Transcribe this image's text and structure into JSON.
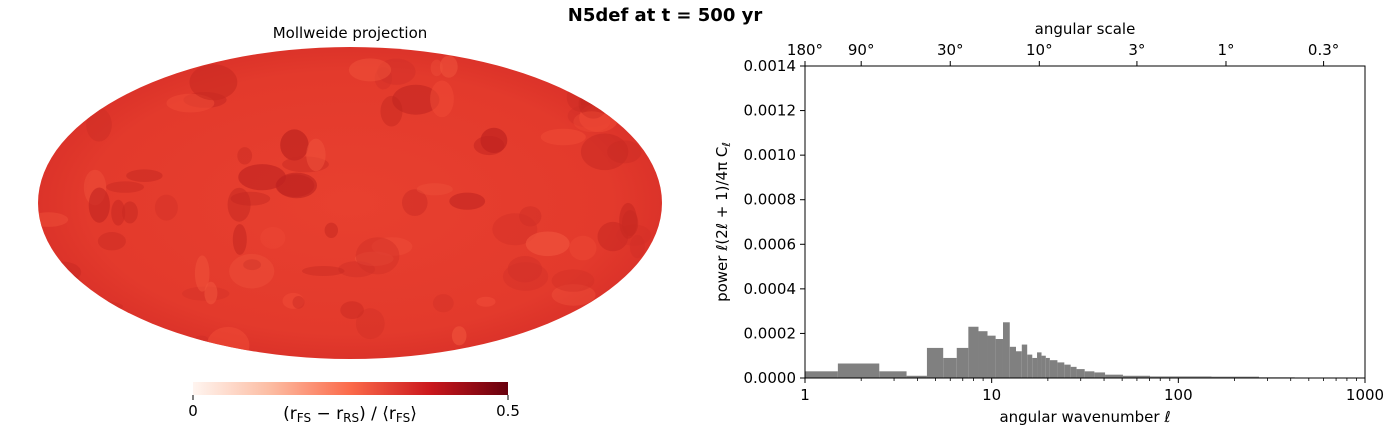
{
  "figure": {
    "title": "N5def at t =  500 yr"
  },
  "map": {
    "title": "Mollweide projection",
    "colorbar": {
      "label_parts": [
        "(r",
        "FS",
        " − r",
        "RS",
        ") / ⟨r",
        "FS",
        "⟩"
      ],
      "min_label": "0",
      "max_label": "0.5",
      "range": [
        0,
        0.5
      ],
      "colors": [
        "#fff5f0",
        "#fcbba1",
        "#fb6a4a",
        "#cb181d",
        "#67000d"
      ]
    },
    "base_color": "#e0302a"
  },
  "chart_data": {
    "type": "bar",
    "x_scale": "log",
    "xlim": [
      1,
      1000
    ],
    "ylim": [
      0,
      0.0014
    ],
    "xlabel": "angular wavenumber ℓ",
    "ylabel": "power ℓ(2ℓ + 1)/4π C",
    "ylabel_subscript": "ℓ",
    "x_ticks": [
      {
        "value": 1,
        "label": "1"
      },
      {
        "value": 10,
        "label": "10"
      },
      {
        "value": 100,
        "label": "100"
      },
      {
        "value": 1000,
        "label": "1000"
      }
    ],
    "y_ticks": [
      {
        "value": 0,
        "label": "0.0000"
      },
      {
        "value": 0.0002,
        "label": "0.0002"
      },
      {
        "value": 0.0004,
        "label": "0.0004"
      },
      {
        "value": 0.0006,
        "label": "0.0006"
      },
      {
        "value": 0.0008,
        "label": "0.0008"
      },
      {
        "value": 0.001,
        "label": "0.0010"
      },
      {
        "value": 0.0012,
        "label": "0.0012"
      },
      {
        "value": 0.0014,
        "label": "0.0014"
      }
    ],
    "top_axis": {
      "label": "angular scale",
      "ticks": [
        {
          "label": "180°",
          "ell": 1
        },
        {
          "label": "90°",
          "ell": 2
        },
        {
          "label": "30°",
          "ell": 6
        },
        {
          "label": "10°",
          "ell": 18
        },
        {
          "label": "3°",
          "ell": 60
        },
        {
          "label": "1°",
          "ell": 180
        },
        {
          "label": "0.3°",
          "ell": 600
        }
      ]
    },
    "bar_color": "#808080",
    "bins": [
      {
        "from": 1.0,
        "to": 1.5,
        "value": 3e-05
      },
      {
        "from": 1.5,
        "to": 2.5,
        "value": 6.5e-05
      },
      {
        "from": 2.5,
        "to": 3.5,
        "value": 3e-05
      },
      {
        "from": 3.5,
        "to": 4.5,
        "value": 1e-05
      },
      {
        "from": 4.5,
        "to": 5.5,
        "value": 0.000135
      },
      {
        "from": 5.5,
        "to": 6.5,
        "value": 9e-05
      },
      {
        "from": 6.5,
        "to": 7.5,
        "value": 0.000135
      },
      {
        "from": 7.5,
        "to": 8.5,
        "value": 0.00023
      },
      {
        "from": 8.5,
        "to": 9.5,
        "value": 0.00021
      },
      {
        "from": 9.5,
        "to": 10.5,
        "value": 0.00019
      },
      {
        "from": 10.5,
        "to": 11.5,
        "value": 0.000175
      },
      {
        "from": 11.5,
        "to": 12.5,
        "value": 0.00025
      },
      {
        "from": 12.5,
        "to": 13.5,
        "value": 0.00014
      },
      {
        "from": 13.5,
        "to": 14.5,
        "value": 0.00012
      },
      {
        "from": 14.5,
        "to": 15.5,
        "value": 0.00015
      },
      {
        "from": 15.5,
        "to": 16.5,
        "value": 0.000105
      },
      {
        "from": 16.5,
        "to": 17.5,
        "value": 9e-05
      },
      {
        "from": 17.5,
        "to": 18.5,
        "value": 0.000115
      },
      {
        "from": 18.5,
        "to": 19.5,
        "value": 0.0001
      },
      {
        "from": 19.5,
        "to": 20.5,
        "value": 9e-05
      },
      {
        "from": 20.5,
        "to": 22.5,
        "value": 8e-05
      },
      {
        "from": 22.5,
        "to": 24.5,
        "value": 7e-05
      },
      {
        "from": 24.5,
        "to": 26.5,
        "value": 6e-05
      },
      {
        "from": 26.5,
        "to": 28.5,
        "value": 5e-05
      },
      {
        "from": 28.5,
        "to": 31.5,
        "value": 4e-05
      },
      {
        "from": 31.5,
        "to": 35.5,
        "value": 3e-05
      },
      {
        "from": 35.5,
        "to": 40.5,
        "value": 2.5e-05
      },
      {
        "from": 40.5,
        "to": 50.5,
        "value": 1.5e-05
      },
      {
        "from": 50.5,
        "to": 70.5,
        "value": 1e-05
      },
      {
        "from": 70.5,
        "to": 150.5,
        "value": 7e-06
      },
      {
        "from": 150.5,
        "to": 270.5,
        "value": 6e-06
      },
      {
        "from": 270.5,
        "to": 420.5,
        "value": 3e-06
      },
      {
        "from": 420.5,
        "to": 1000,
        "value": 1e-06
      }
    ]
  }
}
